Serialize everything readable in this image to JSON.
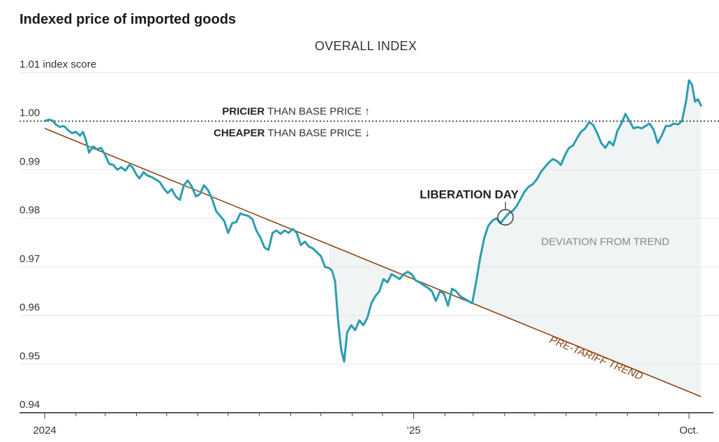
{
  "chart_data": {
    "type": "line",
    "title": "Indexed price of imported goods",
    "subtitle": "OVERALL INDEX",
    "ylabel": "index score",
    "ylim": [
      0.94,
      1.01
    ],
    "yticks": [
      {
        "value": 1.01,
        "label": "1.01 index score"
      },
      {
        "value": 1.0,
        "label": "1.00"
      },
      {
        "value": 0.99,
        "label": "0.99"
      },
      {
        "value": 0.98,
        "label": "0.98"
      },
      {
        "value": 0.97,
        "label": "0.97"
      },
      {
        "value": 0.96,
        "label": "0.96"
      },
      {
        "value": 0.95,
        "label": "0.95"
      },
      {
        "value": 0.94,
        "label": "0.94"
      }
    ],
    "xlim": [
      "2024-01-01",
      "2025-10-15"
    ],
    "xticks": [
      {
        "date": "2024-01-01",
        "label": "2024"
      },
      {
        "date": "2025-01-01",
        "label": "’25"
      },
      {
        "date": "2025-10-01",
        "label": "Oct."
      }
    ],
    "month_ticks": [
      "2024-01-01",
      "2024-02-01",
      "2024-03-01",
      "2024-04-01",
      "2024-05-01",
      "2024-06-01",
      "2024-07-01",
      "2024-08-01",
      "2024-09-01",
      "2024-10-01",
      "2024-11-01",
      "2024-12-01",
      "2025-01-01",
      "2025-02-01",
      "2025-03-01",
      "2025-04-01",
      "2025-05-01",
      "2025-06-01",
      "2025-07-01",
      "2025-08-01",
      "2025-09-01",
      "2025-10-01"
    ],
    "baseline": {
      "value": 1.0,
      "label_above_strong": "PRICIER",
      "label_above_rest": " THAN BASE PRICE ↑",
      "label_below_strong": "CHEAPER",
      "label_below_rest": " THAN BASE PRICE ↓"
    },
    "series": [
      {
        "color": "#2a9db0",
        "points": [
          [
            "2024-01-01",
            1.0
          ],
          [
            "2024-01-05",
            1.0003
          ],
          [
            "2024-01-09",
            1.0001
          ],
          [
            "2024-01-12",
            0.9993
          ],
          [
            "2024-01-16",
            0.9988
          ],
          [
            "2024-01-20",
            0.999
          ],
          [
            "2024-01-24",
            0.9982
          ],
          [
            "2024-01-28",
            0.9975
          ],
          [
            "2024-02-01",
            0.9978
          ],
          [
            "2024-02-05",
            0.997
          ],
          [
            "2024-02-08",
            0.9978
          ],
          [
            "2024-02-11",
            0.996
          ],
          [
            "2024-02-14",
            0.9935
          ],
          [
            "2024-02-18",
            0.9948
          ],
          [
            "2024-02-22",
            0.9942
          ],
          [
            "2024-02-26",
            0.9945
          ],
          [
            "2024-03-01",
            0.993
          ],
          [
            "2024-03-05",
            0.9912
          ],
          [
            "2024-03-09",
            0.991
          ],
          [
            "2024-03-13",
            0.99
          ],
          [
            "2024-03-17",
            0.9905
          ],
          [
            "2024-03-21",
            0.9898
          ],
          [
            "2024-03-25",
            0.991
          ],
          [
            "2024-03-28",
            0.9905
          ],
          [
            "2024-04-01",
            0.989
          ],
          [
            "2024-04-04",
            0.9882
          ],
          [
            "2024-04-08",
            0.9895
          ],
          [
            "2024-04-12",
            0.9888
          ],
          [
            "2024-04-16",
            0.9885
          ],
          [
            "2024-04-20",
            0.988
          ],
          [
            "2024-04-24",
            0.9875
          ],
          [
            "2024-04-28",
            0.9862
          ],
          [
            "2024-05-02",
            0.9852
          ],
          [
            "2024-05-06",
            0.986
          ],
          [
            "2024-05-10",
            0.9845
          ],
          [
            "2024-05-14",
            0.9838
          ],
          [
            "2024-05-18",
            0.9868
          ],
          [
            "2024-05-22",
            0.9878
          ],
          [
            "2024-05-26",
            0.9865
          ],
          [
            "2024-05-30",
            0.9845
          ],
          [
            "2024-06-03",
            0.985
          ],
          [
            "2024-06-07",
            0.9868
          ],
          [
            "2024-06-11",
            0.9858
          ],
          [
            "2024-06-15",
            0.984
          ],
          [
            "2024-06-19",
            0.9815
          ],
          [
            "2024-06-23",
            0.9805
          ],
          [
            "2024-06-27",
            0.9795
          ],
          [
            "2024-07-01",
            0.977
          ],
          [
            "2024-07-05",
            0.979
          ],
          [
            "2024-07-09",
            0.9792
          ],
          [
            "2024-07-13",
            0.981
          ],
          [
            "2024-07-17",
            0.9807
          ],
          [
            "2024-07-21",
            0.9805
          ],
          [
            "2024-07-25",
            0.9798
          ],
          [
            "2024-07-29",
            0.9775
          ],
          [
            "2024-08-02",
            0.976
          ],
          [
            "2024-08-06",
            0.974
          ],
          [
            "2024-08-10",
            0.9735
          ],
          [
            "2024-08-14",
            0.977
          ],
          [
            "2024-08-18",
            0.9775
          ],
          [
            "2024-08-22",
            0.9768
          ],
          [
            "2024-08-26",
            0.9775
          ],
          [
            "2024-08-30",
            0.977
          ],
          [
            "2024-09-03",
            0.9778
          ],
          [
            "2024-09-07",
            0.977
          ],
          [
            "2024-09-11",
            0.9745
          ],
          [
            "2024-09-15",
            0.9752
          ],
          [
            "2024-09-19",
            0.9742
          ],
          [
            "2024-09-23",
            0.9738
          ],
          [
            "2024-09-27",
            0.973
          ],
          [
            "2024-10-01",
            0.9722
          ],
          [
            "2024-10-05",
            0.97
          ],
          [
            "2024-10-09",
            0.9698
          ],
          [
            "2024-10-12",
            0.9692
          ],
          [
            "2024-10-15",
            0.967
          ],
          [
            "2024-10-18",
            0.959
          ],
          [
            "2024-10-21",
            0.953
          ],
          [
            "2024-10-24",
            0.9505
          ],
          [
            "2024-10-27",
            0.9565
          ],
          [
            "2024-10-31",
            0.958
          ],
          [
            "2024-11-04",
            0.957
          ],
          [
            "2024-11-08",
            0.959
          ],
          [
            "2024-11-12",
            0.958
          ],
          [
            "2024-11-16",
            0.9595
          ],
          [
            "2024-11-20",
            0.9625
          ],
          [
            "2024-11-24",
            0.964
          ],
          [
            "2024-11-28",
            0.965
          ],
          [
            "2024-12-02",
            0.9675
          ],
          [
            "2024-12-06",
            0.9668
          ],
          [
            "2024-12-10",
            0.9685
          ],
          [
            "2024-12-14",
            0.968
          ],
          [
            "2024-12-18",
            0.9675
          ],
          [
            "2024-12-22",
            0.9685
          ],
          [
            "2024-12-26",
            0.969
          ],
          [
            "2024-12-30",
            0.9685
          ],
          [
            "2025-01-03",
            0.9672
          ],
          [
            "2025-01-07",
            0.9668
          ],
          [
            "2025-01-11",
            0.9662
          ],
          [
            "2025-01-15",
            0.9657
          ],
          [
            "2025-01-19",
            0.965
          ],
          [
            "2025-01-23",
            0.963
          ],
          [
            "2025-01-27",
            0.965
          ],
          [
            "2025-01-31",
            0.9645
          ],
          [
            "2025-02-04",
            0.962
          ],
          [
            "2025-02-08",
            0.9655
          ],
          [
            "2025-02-12",
            0.965
          ],
          [
            "2025-02-16",
            0.964
          ],
          [
            "2025-02-20",
            0.9635
          ],
          [
            "2025-02-24",
            0.963
          ],
          [
            "2025-02-28",
            0.9625
          ],
          [
            "2025-03-04",
            0.967
          ],
          [
            "2025-03-08",
            0.972
          ],
          [
            "2025-03-12",
            0.976
          ],
          [
            "2025-03-16",
            0.9785
          ],
          [
            "2025-03-20",
            0.9795
          ],
          [
            "2025-03-24",
            0.98
          ],
          [
            "2025-03-28",
            0.979
          ],
          [
            "2025-04-01",
            0.98
          ],
          [
            "2025-04-05",
            0.981
          ],
          [
            "2025-04-09",
            0.9815
          ],
          [
            "2025-04-13",
            0.9825
          ],
          [
            "2025-04-17",
            0.984
          ],
          [
            "2025-04-21",
            0.9855
          ],
          [
            "2025-04-25",
            0.9865
          ],
          [
            "2025-04-29",
            0.987
          ],
          [
            "2025-05-03",
            0.988
          ],
          [
            "2025-05-07",
            0.9895
          ],
          [
            "2025-05-11",
            0.9905
          ],
          [
            "2025-05-15",
            0.9915
          ],
          [
            "2025-05-19",
            0.9922
          ],
          [
            "2025-05-23",
            0.9918
          ],
          [
            "2025-05-27",
            0.991
          ],
          [
            "2025-05-31",
            0.993
          ],
          [
            "2025-06-04",
            0.9945
          ],
          [
            "2025-06-08",
            0.995
          ],
          [
            "2025-06-12",
            0.9965
          ],
          [
            "2025-06-16",
            0.9978
          ],
          [
            "2025-06-20",
            0.9985
          ],
          [
            "2025-06-24",
            0.9998
          ],
          [
            "2025-06-28",
            0.9992
          ],
          [
            "2025-07-02",
            0.9975
          ],
          [
            "2025-07-06",
            0.9955
          ],
          [
            "2025-07-10",
            0.9945
          ],
          [
            "2025-07-14",
            0.9958
          ],
          [
            "2025-07-18",
            0.995
          ],
          [
            "2025-07-22",
            0.998
          ],
          [
            "2025-07-26",
            0.9995
          ],
          [
            "2025-07-30",
            1.0015
          ],
          [
            "2025-08-03",
            1.0
          ],
          [
            "2025-08-07",
            0.9985
          ],
          [
            "2025-08-11",
            0.9988
          ],
          [
            "2025-08-15",
            0.9985
          ],
          [
            "2025-08-19",
            0.999
          ],
          [
            "2025-08-23",
            0.9995
          ],
          [
            "2025-08-27",
            0.9982
          ],
          [
            "2025-08-31",
            0.9955
          ],
          [
            "2025-09-04",
            0.997
          ],
          [
            "2025-09-08",
            0.999
          ],
          [
            "2025-09-12",
            0.999
          ],
          [
            "2025-09-16",
            0.9995
          ],
          [
            "2025-09-20",
            0.9993
          ],
          [
            "2025-09-24",
            1.0
          ],
          [
            "2025-09-28",
            1.004
          ],
          [
            "2025-10-01",
            1.0084
          ],
          [
            "2025-10-04",
            1.0075
          ],
          [
            "2025-10-07",
            1.004
          ],
          [
            "2025-10-10",
            1.0045
          ],
          [
            "2025-10-13",
            1.0032
          ]
        ]
      }
    ],
    "trend": {
      "label": "PRE-TARIFF TREND",
      "color": "#8b4513",
      "start": [
        "2024-01-01",
        0.9985
      ],
      "end": [
        "2025-10-13",
        0.9433
      ]
    },
    "shaded_regions": [
      {
        "from": "2024-10-08",
        "to": "2025-01-14",
        "color": "#f0f4f4"
      },
      {
        "from": "2025-02-25",
        "to": "2025-10-13",
        "color": "#f0f4f4"
      }
    ],
    "annotations": {
      "liberation_day": {
        "label": "LIBERATION DAY",
        "date": "2025-04-02",
        "value": 0.9802
      },
      "deviation": {
        "label": "DEVIATION FROM TREND",
        "date": "2025-07-10",
        "value": 0.9745
      },
      "trend_label_anchor": {
        "date": "2025-05-15",
        "value": 0.9545
      }
    },
    "grid": true
  }
}
